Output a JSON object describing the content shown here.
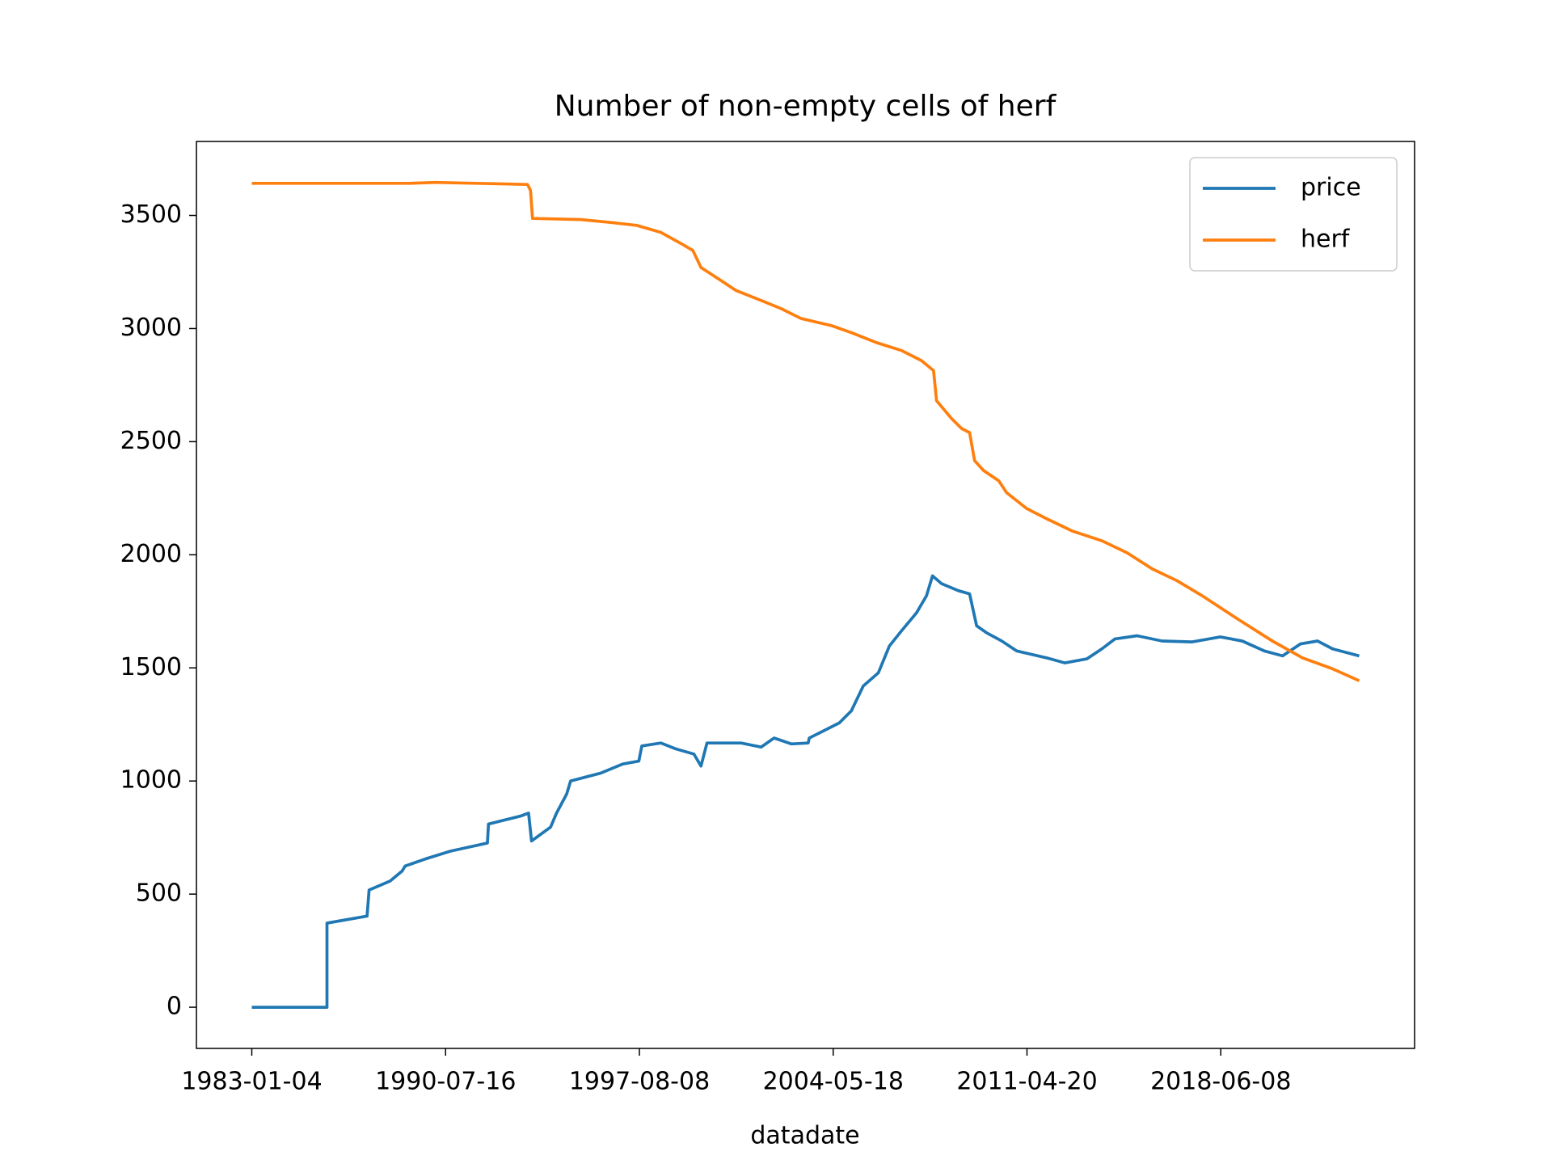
{
  "chart_data": {
    "type": "line",
    "title": "Number of non-empty cells of herf",
    "xlabel": "datadate",
    "xlim": [
      -500,
      10500
    ],
    "ylim": [
      -182,
      3827
    ],
    "xticks": [
      {
        "value": 0,
        "label": "1983-01-04"
      },
      {
        "value": 1750,
        "label": "1990-07-16"
      },
      {
        "value": 3500,
        "label": "1997-08-08"
      },
      {
        "value": 5250,
        "label": "2004-05-18"
      },
      {
        "value": 7000,
        "label": "2011-04-20"
      },
      {
        "value": 8750,
        "label": "2018-06-08"
      }
    ],
    "yticks": [
      0,
      500,
      1000,
      1500,
      2000,
      2500,
      3000,
      3500
    ],
    "legend": "upper right",
    "series": [
      {
        "name": "price",
        "color": "#1f77b4",
        "x": [
          0,
          679,
          679,
          1041,
          1059,
          1249,
          1358,
          1385,
          1566,
          1793,
          2128,
          2137,
          2426,
          2499,
          2526,
          2698,
          2752,
          2843,
          2879,
          3150,
          3350,
          3495,
          3522,
          3694,
          3830,
          3993,
          4056,
          4110,
          4418,
          4599,
          4717,
          4871,
          5024,
          5034,
          5305,
          5414,
          5522,
          5658,
          5758,
          5867,
          6002,
          6093,
          6147,
          6229,
          6382,
          6482,
          6545,
          6636,
          6772,
          6907,
          7179,
          7342,
          7541,
          7677,
          7795,
          7994,
          8220,
          8492,
          8745,
          8944,
          9144,
          9307,
          9470,
          9624,
          9759,
          10000
        ],
        "values": [
          0,
          0,
          372,
          403,
          518,
          558,
          602,
          624,
          655,
          690,
          726,
          810,
          845,
          858,
          735,
          796,
          858,
          942,
          1000,
          1035,
          1075,
          1088,
          1155,
          1168,
          1142,
          1119,
          1066,
          1168,
          1168,
          1150,
          1190,
          1164,
          1168,
          1190,
          1257,
          1310,
          1420,
          1478,
          1597,
          1664,
          1743,
          1819,
          1907,
          1872,
          1841,
          1827,
          1686,
          1655,
          1619,
          1575,
          1544,
          1522,
          1540,
          1584,
          1628,
          1642,
          1619,
          1615,
          1637,
          1619,
          1575,
          1553,
          1606,
          1619,
          1584,
          1553
        ]
      },
      {
        "name": "herf",
        "color": "#ff7f0e",
        "x": [
          0,
          1430,
          1657,
          2490,
          2517,
          2535,
          2969,
          3241,
          3476,
          3694,
          3875,
          3983,
          4056,
          4237,
          4373,
          4599,
          4780,
          4961,
          5233,
          5414,
          5640,
          5867,
          6048,
          6156,
          6183,
          6319,
          6410,
          6482,
          6527,
          6609,
          6745,
          6817,
          6998,
          7179,
          7405,
          7677,
          7903,
          8130,
          8356,
          8582,
          8899,
          9216,
          9488,
          9759,
          10000
        ],
        "values": [
          3642,
          3642,
          3646,
          3637,
          3611,
          3487,
          3482,
          3469,
          3456,
          3425,
          3376,
          3345,
          3270,
          3212,
          3168,
          3124,
          3088,
          3044,
          3013,
          2982,
          2938,
          2903,
          2858,
          2814,
          2681,
          2602,
          2558,
          2540,
          2416,
          2372,
          2327,
          2274,
          2204,
          2159,
          2106,
          2062,
          2009,
          1938,
          1885,
          1819,
          1717,
          1619,
          1544,
          1496,
          1443
        ]
      }
    ]
  }
}
